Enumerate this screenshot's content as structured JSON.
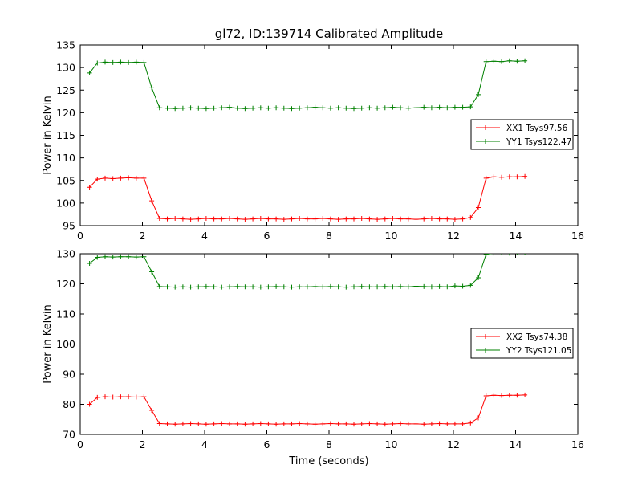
{
  "figure": {
    "title": "gl72, ID:139714 Calibrated Amplitude",
    "xlabel": "Time (seconds)",
    "ylabel": "Power in Kelvin"
  },
  "colors": {
    "xx": "#ff0000",
    "yy": "#008000",
    "axis": "#000000",
    "background": "#ffffff"
  },
  "chart_data": [
    {
      "type": "line",
      "title": "gl72, ID:139714 Calibrated Amplitude",
      "ylabel": "Power in Kelvin",
      "xlabel": "",
      "xlim": [
        0,
        16
      ],
      "ylim": [
        95,
        135
      ],
      "xticks": [
        0,
        2,
        4,
        6,
        8,
        10,
        12,
        14,
        16
      ],
      "yticks": [
        95,
        100,
        105,
        110,
        115,
        120,
        125,
        130,
        135
      ],
      "grid": false,
      "legend_position": "center right",
      "marker": "+",
      "x": [
        0.3,
        0.55,
        0.8,
        1.05,
        1.3,
        1.55,
        1.8,
        2.05,
        2.3,
        2.55,
        2.8,
        3.05,
        3.3,
        3.55,
        3.8,
        4.05,
        4.3,
        4.55,
        4.8,
        5.05,
        5.3,
        5.55,
        5.8,
        6.05,
        6.3,
        6.55,
        6.8,
        7.05,
        7.3,
        7.55,
        7.8,
        8.05,
        8.3,
        8.55,
        8.8,
        9.05,
        9.3,
        9.55,
        9.8,
        10.05,
        10.3,
        10.55,
        10.8,
        11.05,
        11.3,
        11.55,
        11.8,
        12.05,
        12.3,
        12.55,
        12.8,
        13.05,
        13.3,
        13.55,
        13.8,
        14.05,
        14.3
      ],
      "series": [
        {
          "name": "XX1 Tsys97.56",
          "color": "#ff0000",
          "values": [
            103.5,
            105.3,
            105.5,
            105.4,
            105.5,
            105.6,
            105.5,
            105.5,
            100.5,
            96.6,
            96.5,
            96.6,
            96.5,
            96.4,
            96.5,
            96.6,
            96.5,
            96.5,
            96.6,
            96.5,
            96.4,
            96.5,
            96.6,
            96.5,
            96.5,
            96.4,
            96.5,
            96.6,
            96.5,
            96.5,
            96.6,
            96.5,
            96.4,
            96.5,
            96.5,
            96.6,
            96.5,
            96.4,
            96.5,
            96.6,
            96.5,
            96.5,
            96.4,
            96.5,
            96.6,
            96.5,
            96.5,
            96.4,
            96.5,
            96.8,
            99.0,
            105.5,
            105.8,
            105.7,
            105.8,
            105.8,
            105.9
          ]
        },
        {
          "name": "YY1 Tsys122.47",
          "color": "#008000",
          "values": [
            128.8,
            131.0,
            131.2,
            131.1,
            131.2,
            131.1,
            131.2,
            131.1,
            125.5,
            121.1,
            121.0,
            120.9,
            121.0,
            121.1,
            121.0,
            120.9,
            121.0,
            121.1,
            121.2,
            121.0,
            120.9,
            121.0,
            121.1,
            121.0,
            121.1,
            121.0,
            120.9,
            121.0,
            121.1,
            121.2,
            121.1,
            121.0,
            121.1,
            121.0,
            120.9,
            121.0,
            121.1,
            121.0,
            121.1,
            121.2,
            121.1,
            121.0,
            121.1,
            121.2,
            121.1,
            121.2,
            121.1,
            121.2,
            121.2,
            121.3,
            124.0,
            131.3,
            131.4,
            131.3,
            131.5,
            131.4,
            131.5
          ]
        }
      ]
    },
    {
      "type": "line",
      "title": "",
      "ylabel": "Power in Kelvin",
      "xlabel": "Time (seconds)",
      "xlim": [
        0,
        16
      ],
      "ylim": [
        70,
        130
      ],
      "xticks": [
        0,
        2,
        4,
        6,
        8,
        10,
        12,
        14,
        16
      ],
      "yticks": [
        70,
        80,
        90,
        100,
        110,
        120,
        130
      ],
      "grid": false,
      "legend_position": "center right",
      "marker": "+",
      "x": [
        0.3,
        0.55,
        0.8,
        1.05,
        1.3,
        1.55,
        1.8,
        2.05,
        2.3,
        2.55,
        2.8,
        3.05,
        3.3,
        3.55,
        3.8,
        4.05,
        4.3,
        4.55,
        4.8,
        5.05,
        5.3,
        5.55,
        5.8,
        6.05,
        6.3,
        6.55,
        6.8,
        7.05,
        7.3,
        7.55,
        7.8,
        8.05,
        8.3,
        8.55,
        8.8,
        9.05,
        9.3,
        9.55,
        9.8,
        10.05,
        10.3,
        10.55,
        10.8,
        11.05,
        11.3,
        11.55,
        11.8,
        12.05,
        12.3,
        12.55,
        12.8,
        13.05,
        13.3,
        13.55,
        13.8,
        14.05,
        14.3
      ],
      "series": [
        {
          "name": "XX2 Tsys74.38",
          "color": "#ff0000",
          "values": [
            80.0,
            82.3,
            82.5,
            82.4,
            82.5,
            82.5,
            82.4,
            82.5,
            78.0,
            73.6,
            73.5,
            73.4,
            73.5,
            73.6,
            73.5,
            73.4,
            73.5,
            73.6,
            73.5,
            73.5,
            73.4,
            73.5,
            73.6,
            73.5,
            73.4,
            73.5,
            73.5,
            73.6,
            73.5,
            73.4,
            73.5,
            73.6,
            73.5,
            73.5,
            73.4,
            73.5,
            73.6,
            73.5,
            73.4,
            73.5,
            73.6,
            73.5,
            73.5,
            73.4,
            73.5,
            73.6,
            73.5,
            73.5,
            73.5,
            73.8,
            75.5,
            82.8,
            83.0,
            82.9,
            83.0,
            83.0,
            83.1
          ]
        },
        {
          "name": "YY2 Tsys121.05",
          "color": "#008000",
          "values": [
            126.8,
            128.8,
            129.0,
            128.9,
            129.0,
            129.0,
            128.9,
            129.0,
            124.0,
            119.1,
            119.0,
            118.9,
            119.0,
            118.9,
            119.0,
            119.1,
            119.0,
            118.9,
            119.0,
            119.1,
            119.0,
            119.0,
            118.9,
            119.0,
            119.1,
            119.0,
            118.9,
            119.0,
            119.0,
            119.1,
            119.0,
            119.1,
            119.0,
            118.9,
            119.0,
            119.1,
            119.0,
            119.0,
            119.1,
            119.0,
            119.1,
            119.0,
            119.2,
            119.1,
            119.0,
            119.1,
            119.0,
            119.3,
            119.2,
            119.5,
            122.0,
            129.8,
            130.2,
            130.3,
            130.2,
            130.4,
            130.3
          ]
        }
      ]
    }
  ]
}
